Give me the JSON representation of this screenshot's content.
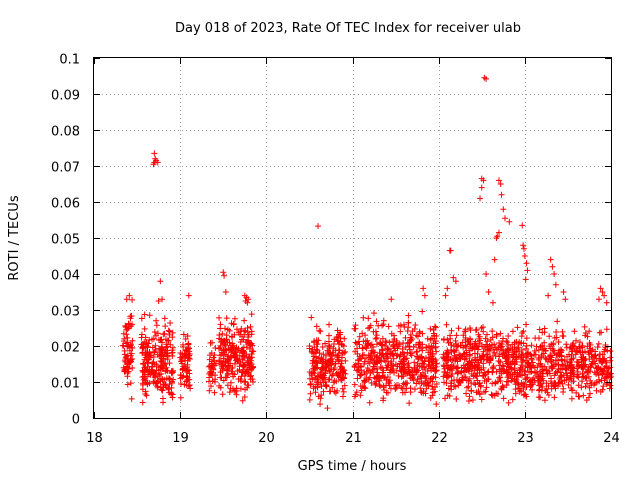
{
  "chart_data": {
    "type": "scatter",
    "title": "Day 018 of 2023, Rate Of TEC Index for receiver ulab",
    "xlabel": "GPS time / hours",
    "ylabel": "ROTI / TECUs",
    "xlim": [
      18,
      24
    ],
    "ylim": [
      0,
      0.1
    ],
    "grid": true,
    "x_ticks": [
      18,
      19,
      20,
      21,
      22,
      23,
      24
    ],
    "y_ticks": [
      0,
      0.01,
      0.02,
      0.03,
      0.04,
      0.05,
      0.06,
      0.07,
      0.08,
      0.09,
      0.1
    ],
    "x_tick_labels": [
      "18",
      "19",
      "20",
      "21",
      "22",
      "23",
      "24"
    ],
    "y_tick_labels": [
      "0",
      "0.01",
      "0.02",
      "0.03",
      "0.04",
      "0.05",
      "0.06",
      "0.07",
      "0.08",
      "0.09",
      "0.1"
    ],
    "series_color": "#ff0000",
    "marker": "plus",
    "clusters": [
      {
        "x_start": 18.33,
        "x_end": 18.45,
        "y_min": 0.003,
        "y_max": 0.033,
        "count": 70
      },
      {
        "x_start": 18.55,
        "x_end": 18.92,
        "y_min": 0.002,
        "y_max": 0.03,
        "count": 230
      },
      {
        "x_start": 19.0,
        "x_end": 19.12,
        "y_min": 0.004,
        "y_max": 0.027,
        "count": 70
      },
      {
        "x_start": 19.33,
        "x_end": 19.42,
        "y_min": 0.004,
        "y_max": 0.023,
        "count": 35
      },
      {
        "x_start": 19.45,
        "x_end": 19.85,
        "y_min": 0.004,
        "y_max": 0.03,
        "count": 240
      },
      {
        "x_start": 20.5,
        "x_end": 20.92,
        "y_min": 0.002,
        "y_max": 0.029,
        "count": 230
      },
      {
        "x_start": 21.02,
        "x_end": 21.98,
        "y_min": 0.002,
        "y_max": 0.03,
        "count": 480
      },
      {
        "x_start": 22.05,
        "x_end": 24.0,
        "y_min": 0.003,
        "y_max": 0.028,
        "count": 950
      }
    ],
    "outliers": [
      {
        "x": 18.38,
        "y": 0.033
      },
      {
        "x": 18.41,
        "y": 0.034
      },
      {
        "x": 18.7,
        "y": 0.0735
      },
      {
        "x": 18.71,
        "y": 0.072
      },
      {
        "x": 18.72,
        "y": 0.0715
      },
      {
        "x": 18.7,
        "y": 0.071
      },
      {
        "x": 18.74,
        "y": 0.071
      },
      {
        "x": 18.69,
        "y": 0.0705
      },
      {
        "x": 18.77,
        "y": 0.038
      },
      {
        "x": 18.75,
        "y": 0.0325
      },
      {
        "x": 18.79,
        "y": 0.033
      },
      {
        "x": 19.1,
        "y": 0.034
      },
      {
        "x": 19.5,
        "y": 0.0405
      },
      {
        "x": 19.51,
        "y": 0.0395
      },
      {
        "x": 19.53,
        "y": 0.035
      },
      {
        "x": 19.75,
        "y": 0.034
      },
      {
        "x": 19.77,
        "y": 0.0335
      },
      {
        "x": 19.79,
        "y": 0.033
      },
      {
        "x": 19.76,
        "y": 0.0325
      },
      {
        "x": 19.78,
        "y": 0.032
      },
      {
        "x": 20.6,
        "y": 0.0533
      },
      {
        "x": 21.45,
        "y": 0.033
      },
      {
        "x": 21.82,
        "y": 0.036
      },
      {
        "x": 21.84,
        "y": 0.034
      },
      {
        "x": 22.08,
        "y": 0.034
      },
      {
        "x": 22.1,
        "y": 0.036
      },
      {
        "x": 22.13,
        "y": 0.0465
      },
      {
        "x": 22.14,
        "y": 0.0465
      },
      {
        "x": 22.17,
        "y": 0.039
      },
      {
        "x": 22.2,
        "y": 0.038
      },
      {
        "x": 22.5,
        "y": 0.0665
      },
      {
        "x": 22.52,
        "y": 0.066
      },
      {
        "x": 22.5,
        "y": 0.064
      },
      {
        "x": 22.48,
        "y": 0.061
      },
      {
        "x": 22.53,
        "y": 0.0945
      },
      {
        "x": 22.55,
        "y": 0.0942
      },
      {
        "x": 22.55,
        "y": 0.04
      },
      {
        "x": 22.58,
        "y": 0.035
      },
      {
        "x": 22.63,
        "y": 0.032
      },
      {
        "x": 22.65,
        "y": 0.044
      },
      {
        "x": 22.67,
        "y": 0.05
      },
      {
        "x": 22.68,
        "y": 0.0505
      },
      {
        "x": 22.7,
        "y": 0.0515
      },
      {
        "x": 22.7,
        "y": 0.066
      },
      {
        "x": 22.72,
        "y": 0.065
      },
      {
        "x": 22.73,
        "y": 0.062
      },
      {
        "x": 22.75,
        "y": 0.058
      },
      {
        "x": 22.77,
        "y": 0.0555
      },
      {
        "x": 22.82,
        "y": 0.0545
      },
      {
        "x": 22.97,
        "y": 0.0535
      },
      {
        "x": 22.98,
        "y": 0.048
      },
      {
        "x": 22.99,
        "y": 0.047
      },
      {
        "x": 23.0,
        "y": 0.045
      },
      {
        "x": 23.02,
        "y": 0.043
      },
      {
        "x": 23.03,
        "y": 0.041
      },
      {
        "x": 23.01,
        "y": 0.0385
      },
      {
        "x": 23.3,
        "y": 0.044
      },
      {
        "x": 23.32,
        "y": 0.042
      },
      {
        "x": 23.34,
        "y": 0.04
      },
      {
        "x": 23.36,
        "y": 0.037
      },
      {
        "x": 23.45,
        "y": 0.035
      },
      {
        "x": 23.47,
        "y": 0.033
      },
      {
        "x": 23.27,
        "y": 0.034
      },
      {
        "x": 23.88,
        "y": 0.036
      },
      {
        "x": 23.9,
        "y": 0.035
      },
      {
        "x": 23.92,
        "y": 0.034
      },
      {
        "x": 23.86,
        "y": 0.033
      },
      {
        "x": 23.95,
        "y": 0.032
      }
    ]
  }
}
